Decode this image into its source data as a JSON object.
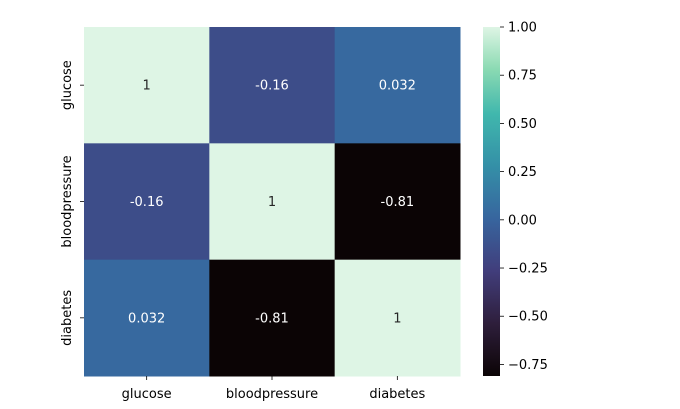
{
  "chart_data": {
    "type": "heatmap",
    "title": "",
    "xlabel": "",
    "ylabel": "",
    "x_categories": [
      "glucose",
      "bloodpressure",
      "diabetes"
    ],
    "y_categories": [
      "glucose",
      "bloodpressure",
      "diabetes"
    ],
    "values": [
      [
        1,
        -0.16,
        0.032
      ],
      [
        -0.16,
        1,
        -0.81
      ],
      [
        0.032,
        -0.81,
        1
      ]
    ],
    "annotations": [
      [
        "1",
        "-0.16",
        "0.032"
      ],
      [
        "-0.16",
        "1",
        "-0.81"
      ],
      [
        "0.032",
        "-0.81",
        "1"
      ]
    ],
    "colormap": "mako",
    "colorbar": {
      "vmin": -0.81,
      "vmax": 1.0,
      "tick_values": [
        1.0,
        0.75,
        0.5,
        0.25,
        0.0,
        -0.25,
        -0.5,
        -0.75
      ],
      "tick_labels": [
        "1.00",
        "0.75",
        "0.50",
        "0.25",
        "0.00",
        "−0.25",
        "−0.50",
        "−0.75"
      ]
    },
    "colormap_stops": [
      {
        "v": 0.0,
        "color": "#0b0405"
      },
      {
        "v": 0.15,
        "color": "#2e1e3b"
      },
      {
        "v": 0.3,
        "color": "#413d7b"
      },
      {
        "v": 0.45,
        "color": "#37659e"
      },
      {
        "v": 0.6,
        "color": "#348fa7"
      },
      {
        "v": 0.75,
        "color": "#40b7ad"
      },
      {
        "v": 0.88,
        "color": "#8bdab2"
      },
      {
        "v": 1.0,
        "color": "#def5e5"
      }
    ],
    "grid": false
  }
}
